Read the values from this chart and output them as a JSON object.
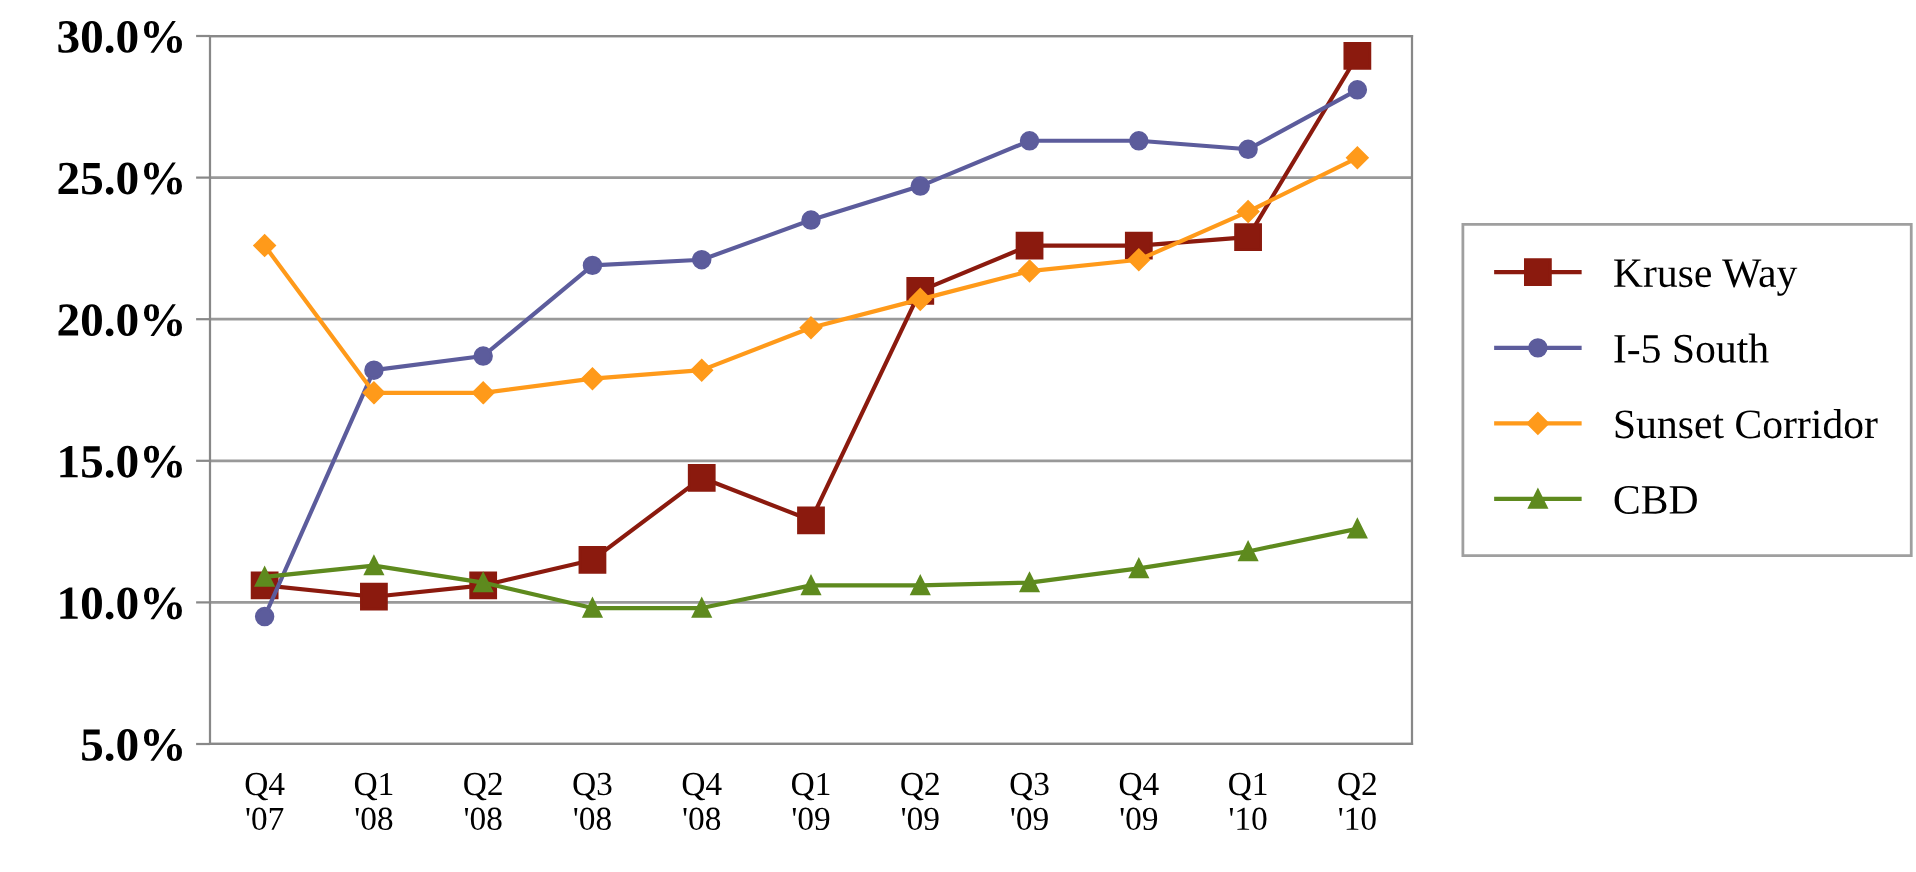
{
  "chart_data": {
    "type": "line",
    "categories": [
      "Q4\n'07",
      "Q1\n'08",
      "Q2\n'08",
      "Q3\n'08",
      "Q4\n'08",
      "Q1\n'09",
      "Q2\n'09",
      "Q3\n'09",
      "Q4\n'09",
      "Q1\n'10",
      "Q2\n'10"
    ],
    "series": [
      {
        "name": "Kruse Way",
        "color": "#8b1a0e",
        "marker": "square",
        "values": [
          10.6,
          10.2,
          10.6,
          11.5,
          14.4,
          12.9,
          21.0,
          22.6,
          22.6,
          22.9,
          29.3
        ]
      },
      {
        "name": "I-5 South",
        "color": "#5c5c9c",
        "marker": "circle",
        "values": [
          9.5,
          18.2,
          18.7,
          21.9,
          22.1,
          23.5,
          24.7,
          26.3,
          26.3,
          26.0,
          28.1
        ]
      },
      {
        "name": "Sunset Corridor",
        "color": "#ff9a1a",
        "marker": "diamond",
        "values": [
          22.6,
          17.4,
          17.4,
          17.9,
          18.2,
          19.7,
          20.7,
          21.7,
          22.1,
          23.8,
          25.7
        ]
      },
      {
        "name": "CBD",
        "color": "#5e8a1e",
        "marker": "triangle",
        "values": [
          10.9,
          11.3,
          10.7,
          9.8,
          9.8,
          10.6,
          10.6,
          10.7,
          11.2,
          11.8,
          12.6
        ]
      }
    ],
    "ylim": [
      5,
      30
    ],
    "yticks": [
      {
        "value": 5,
        "label": "5.0%"
      },
      {
        "value": 10,
        "label": "10.0%"
      },
      {
        "value": 15,
        "label": "15.0%"
      },
      {
        "value": 20,
        "label": "20.0%"
      },
      {
        "value": 25,
        "label": "25.0%"
      },
      {
        "value": 30,
        "label": "30.0%"
      }
    ],
    "grid": "y",
    "legend": "right"
  }
}
